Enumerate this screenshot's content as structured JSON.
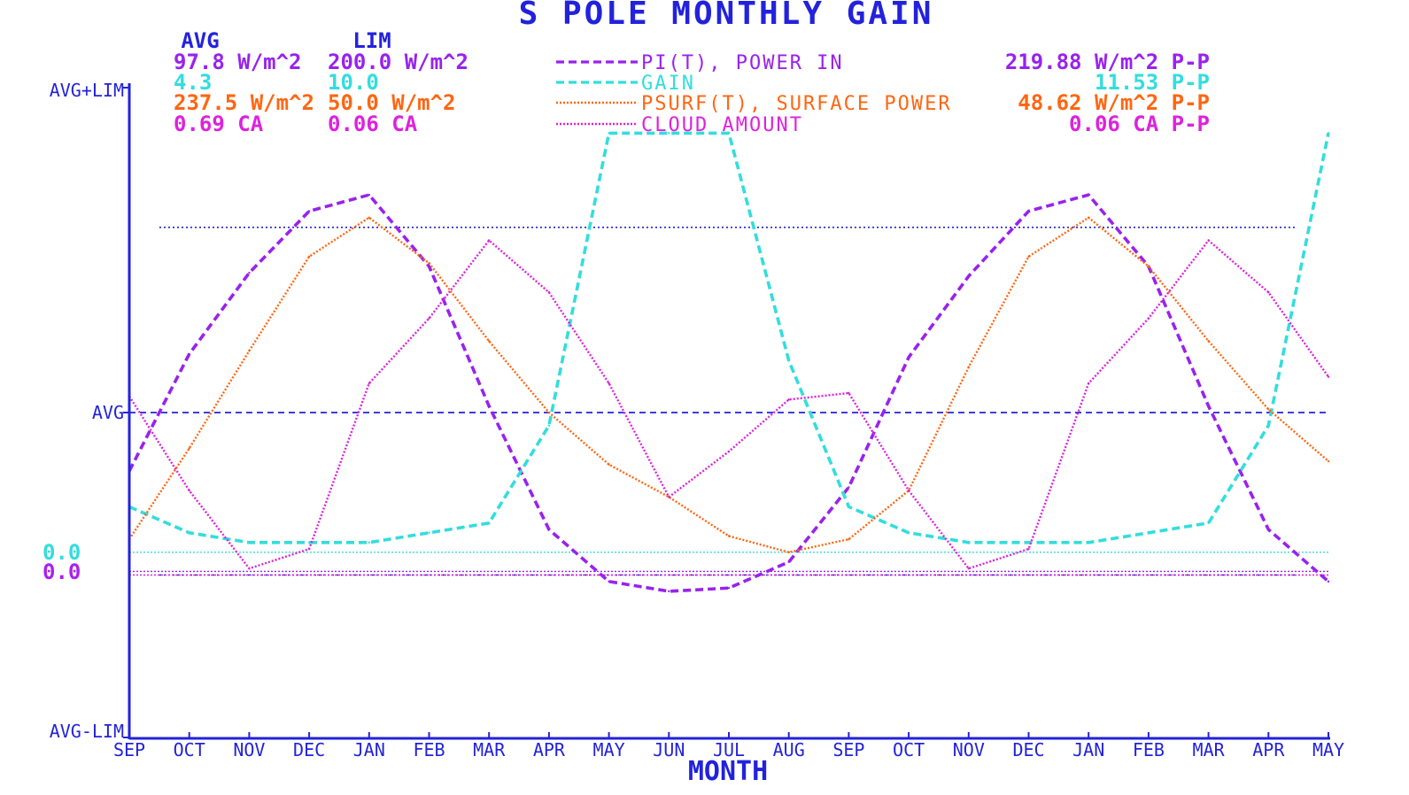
{
  "chart_data": {
    "type": "line",
    "title": "S POLE MONTHLY GAIN",
    "xlabel": "MONTH",
    "x_ticks": [
      "SEP",
      "OCT",
      "NOV",
      "DEC",
      "JAN",
      "FEB",
      "MAR",
      "APR",
      "MAY",
      "JUN",
      "JUL",
      "AUG",
      "SEP",
      "OCT",
      "NOV",
      "DEC",
      "JAN",
      "FEB",
      "MAR",
      "APR",
      "MAY"
    ],
    "y_tick_labels": {
      "top": "AVG+LIM",
      "mid": "AVG",
      "bottom": "AVG-LIM"
    },
    "zero_labels": [
      {
        "text": "0.0",
        "color": "#33dddd"
      },
      {
        "text": "0.0",
        "color": "#aa22ee"
      }
    ],
    "ylim_normalized": [
      -1,
      1
    ],
    "grid": false,
    "legend_position": "top-center",
    "header": {
      "avg": "AVG",
      "lim": "LIM"
    },
    "series": [
      {
        "name": "PI(T), POWER IN",
        "color": "#9922ee",
        "dash": "dashed",
        "avg": "97.8 W/m^2",
        "lim": "200.0 W/m^2",
        "pp": "219.88 W/m^2 P-P",
        "zero_norm": -0.489,
        "values": [
          -0.18,
          0.18,
          0.43,
          0.62,
          0.67,
          0.45,
          0.02,
          -0.36,
          -0.52,
          -0.55,
          -0.54,
          -0.46,
          -0.23,
          0.17,
          0.42,
          0.62,
          0.67,
          0.45,
          0.02,
          -0.36,
          -0.52
        ]
      },
      {
        "name": "GAIN",
        "color": "#33dddd",
        "dash": "dashed",
        "avg": "4.3",
        "lim": "10.0",
        "pp": "11.53 P-P",
        "zero_norm": -0.43,
        "values": [
          -0.29,
          -0.37,
          -0.4,
          -0.4,
          -0.4,
          -0.37,
          -0.34,
          -0.04,
          0.86,
          0.86,
          0.86,
          0.16,
          -0.29,
          -0.37,
          -0.4,
          -0.4,
          -0.4,
          -0.37,
          -0.34,
          -0.04,
          0.86
        ]
      },
      {
        "name": "PSURF(T), SURFACE POWER",
        "color": "#ff6611",
        "dash": "dotted",
        "avg": "237.5 W/m^2",
        "lim": "50.0 W/m^2",
        "pp": "48.62 W/m^2 P-P",
        "zero_norm": null,
        "values": [
          -0.39,
          -0.11,
          0.19,
          0.48,
          0.6,
          0.46,
          0.22,
          0.0,
          -0.16,
          -0.26,
          -0.38,
          -0.43,
          -0.39,
          -0.24,
          0.14,
          0.48,
          0.6,
          0.45,
          0.22,
          0.01,
          -0.15
        ]
      },
      {
        "name": "CLOUD AMOUNT",
        "color": "#dd22dd",
        "dash": "dotted",
        "avg": "0.69 CA",
        "lim": "0.06 CA",
        "pp": "0.06 CA P-P",
        "zero_norm": -0.5,
        "values": [
          0.05,
          -0.24,
          -0.48,
          -0.42,
          0.09,
          0.29,
          0.53,
          0.37,
          0.09,
          -0.26,
          -0.12,
          0.04,
          0.06,
          -0.24,
          -0.48,
          -0.42,
          0.09,
          0.29,
          0.53,
          0.37,
          0.11
        ]
      }
    ],
    "reference_lines": [
      {
        "name": "upper-reference-line",
        "value": 0.57,
        "color": "#2222cc"
      },
      {
        "name": "lower-reference-line",
        "value": -0.5,
        "color": "#2222cc"
      }
    ]
  }
}
